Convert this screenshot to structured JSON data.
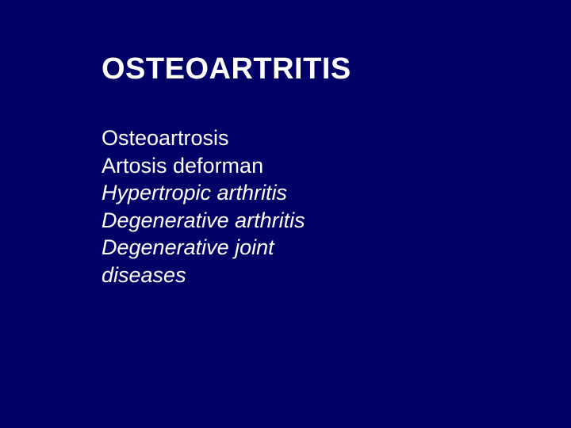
{
  "slide": {
    "background_color": "#000066",
    "text_color": "#ffffff",
    "title": {
      "text": "OSTEOARTRITIS",
      "font_size": 38,
      "font_weight": "bold"
    },
    "body": {
      "font_size": 27,
      "lines": [
        {
          "text": "Osteoartrosis",
          "italic": false
        },
        {
          "text": "Artosis deforman",
          "italic": false
        },
        {
          "text": "Hypertropic arthritis",
          "italic": true
        },
        {
          "text": "Degenerative arthritis",
          "italic": true
        },
        {
          "text": "Degenerative joint",
          "italic": true
        },
        {
          "text": "diseases",
          "italic": true
        }
      ]
    }
  }
}
